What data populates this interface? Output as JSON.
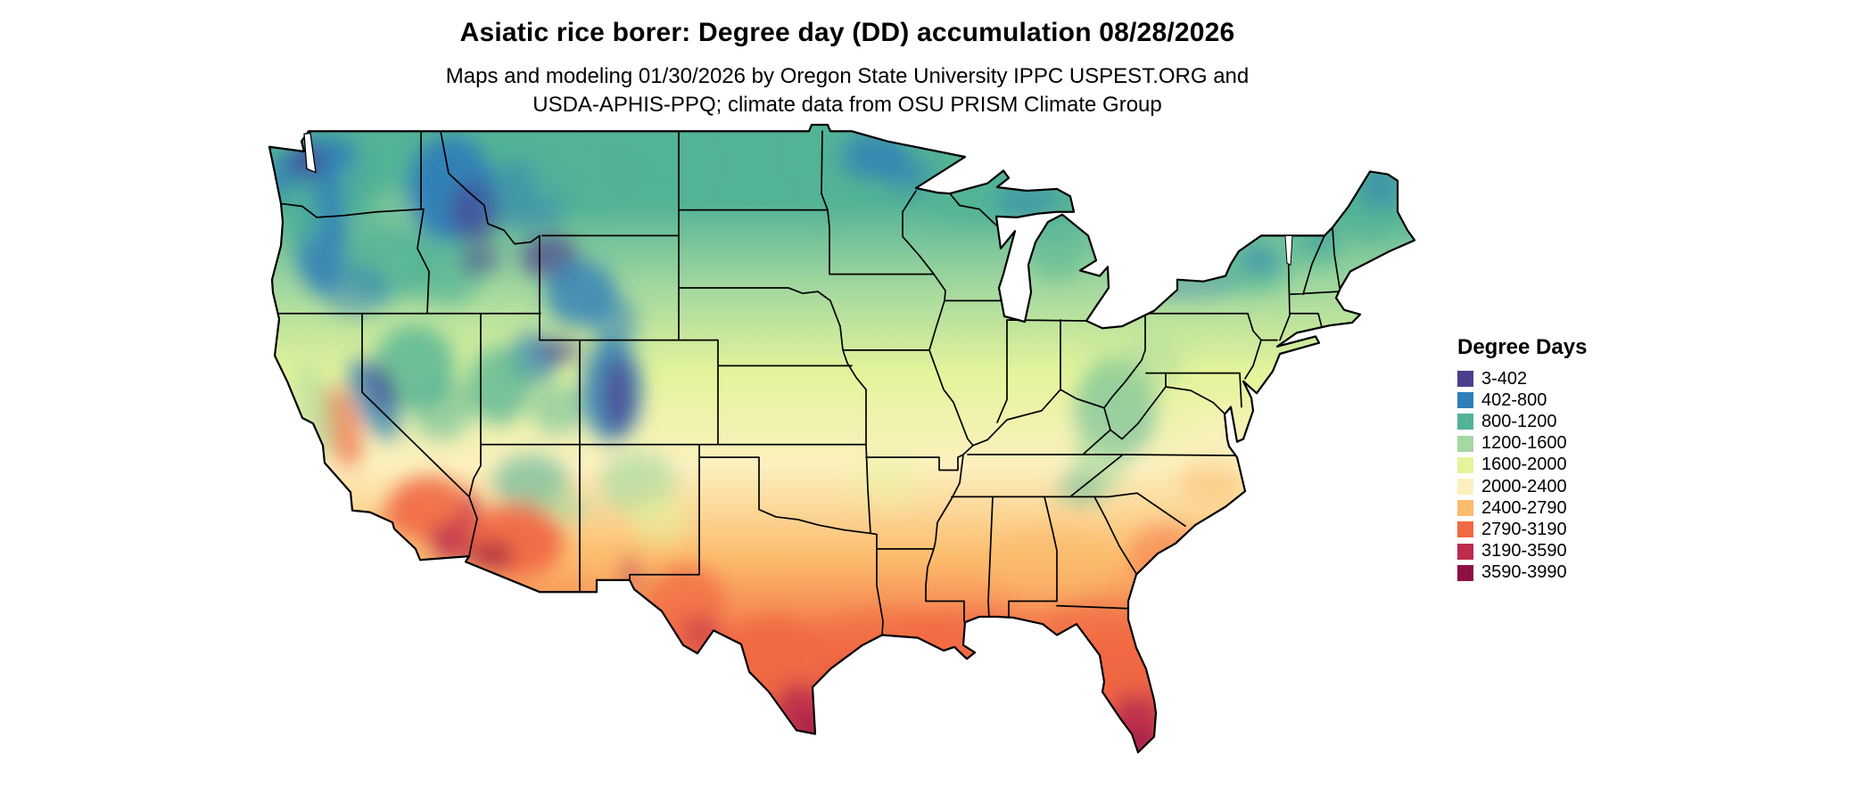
{
  "title": "Asiatic rice borer: Degree day (DD) accumulation 08/28/2026",
  "subtitle": {
    "line1": "Maps and modeling 01/30/2026 by Oregon State University IPPC USPEST.ORG and",
    "line2": "USDA-APHIS-PPQ; climate data from OSU PRISM Climate Group"
  },
  "legend": {
    "title": "Degree Days",
    "classes": [
      {
        "label": "3-402",
        "color": "#4c3e8f"
      },
      {
        "label": "402-800",
        "color": "#2f7eb8"
      },
      {
        "label": "800-1200",
        "color": "#53b396"
      },
      {
        "label": "1200-1600",
        "color": "#a3d89e"
      },
      {
        "label": "1600-2000",
        "color": "#e4f49b"
      },
      {
        "label": "2000-2400",
        "color": "#fcf0bf"
      },
      {
        "label": "2400-2790",
        "color": "#fcbc6d"
      },
      {
        "label": "2790-3190",
        "color": "#f16943"
      },
      {
        "label": "3190-3590",
        "color": "#bd2b4d"
      },
      {
        "label": "3590-3990",
        "color": "#8c1043"
      }
    ]
  }
}
